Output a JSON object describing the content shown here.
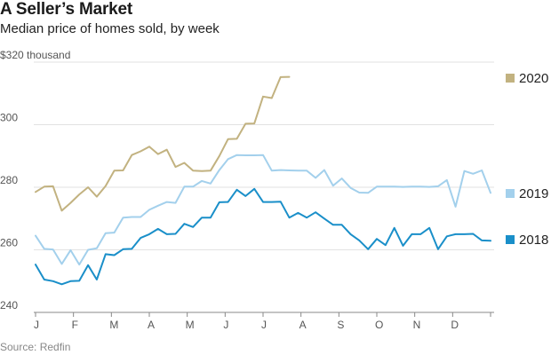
{
  "title": "A Seller’s Market",
  "subtitle": "Median price of homes sold, by week",
  "source": "Source: Redfin",
  "chart_data": {
    "type": "line",
    "title": "A Seller’s Market",
    "subtitle": "Median price of homes sold, by week",
    "ylabel": "",
    "xlabel": "",
    "ylim": [
      240,
      320
    ],
    "xlim": [
      0,
      52
    ],
    "yticks": [
      240,
      260,
      280,
      300,
      320
    ],
    "ytick_labels": [
      "240",
      "260",
      "280",
      "300",
      "$320 thousand"
    ],
    "months": [
      "J",
      "F",
      "M",
      "A",
      "M",
      "J",
      "J",
      "A",
      "S",
      "O",
      "N",
      "D"
    ],
    "grid": true,
    "legend": "right-end labels",
    "colors": {
      "2020": "#c2b280",
      "2019": "#a3d0ec",
      "2018": "#1a8fc9"
    },
    "series": [
      {
        "name": "2020",
        "values": [
          278.5,
          280.2,
          280.3,
          272.5,
          275.0,
          277.7,
          280.0,
          277.0,
          280.4,
          285.3,
          285.4,
          290.3,
          291.5,
          293.0,
          290.6,
          292.0,
          286.5,
          287.8,
          285.3,
          285.2,
          285.3,
          290.0,
          295.4,
          295.5,
          300.3,
          300.4,
          309.0,
          308.5,
          315.2,
          315.3
        ]
      },
      {
        "name": "2019",
        "values": [
          264.5,
          260.3,
          260.1,
          255.5,
          259.9,
          255.3,
          260.0,
          260.5,
          265.3,
          265.5,
          270.3,
          270.5,
          270.5,
          272.8,
          274.1,
          275.3,
          275.0,
          280.2,
          280.2,
          282.0,
          281.2,
          285.5,
          289.0,
          290.3,
          290.2,
          290.2,
          290.3,
          285.3,
          285.5,
          285.4,
          285.3,
          285.3,
          283.0,
          285.5,
          280.5,
          282.8,
          279.8,
          278.3,
          278.2,
          280.2,
          280.2,
          280.2,
          280.1,
          280.2,
          280.2,
          280.1,
          280.3,
          282.3,
          273.8,
          285.2,
          284.3,
          285.4,
          278.2
        ]
      },
      {
        "name": "2018",
        "values": [
          255.3,
          250.5,
          250.0,
          249.0,
          250.0,
          250.1,
          255.1,
          250.5,
          258.6,
          258.3,
          260.2,
          260.3,
          263.8,
          265.0,
          266.7,
          265.0,
          265.1,
          268.3,
          267.3,
          270.3,
          270.3,
          275.2,
          275.3,
          279.2,
          277.2,
          279.5,
          275.3,
          275.3,
          275.4,
          270.3,
          271.8,
          270.3,
          272.0,
          270.0,
          268.0,
          268.0,
          265.0,
          263.0,
          260.2,
          263.5,
          261.5,
          267.0,
          261.3,
          265.0,
          265.0,
          267.0,
          260.2,
          264.3,
          265.0,
          265.0,
          265.1,
          263.0,
          262.9
        ]
      }
    ]
  }
}
